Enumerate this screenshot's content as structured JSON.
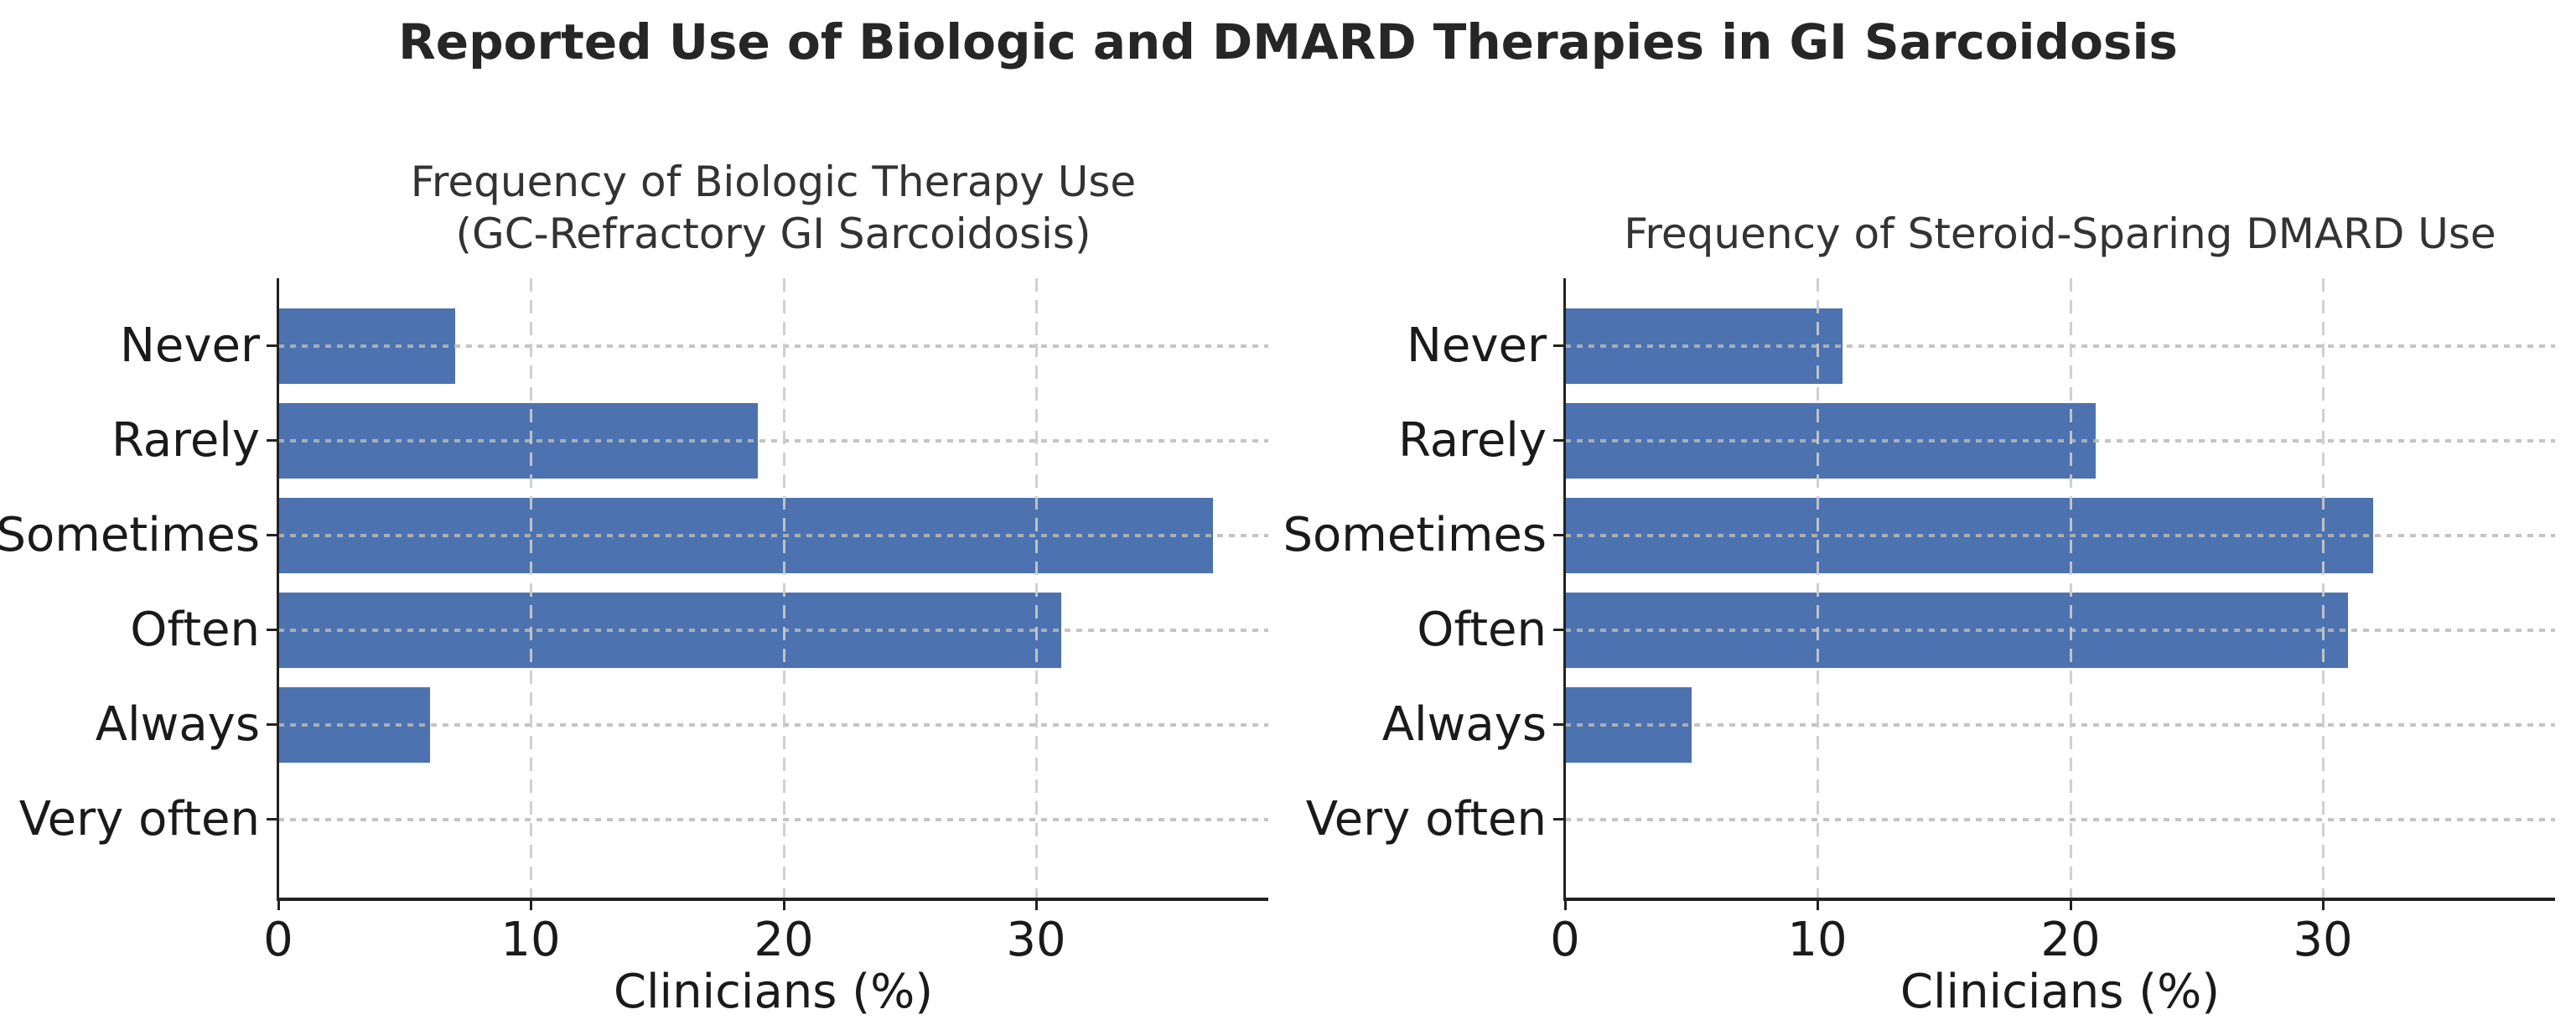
{
  "title": "Reported Use of Biologic and DMARD Therapies in GI Sarcoidosis",
  "colors": {
    "bar": "#4C72B0",
    "spine": "#222222",
    "grid_vertical": "rgba(203,203,203,0.9)",
    "grid_horizontal": "rgba(185,185,185,0.85)",
    "title_text": "#262626",
    "subtitle_text": "#333333",
    "label_text": "#1a1a1a"
  },
  "chart_data": [
    {
      "type": "bar",
      "orientation": "horizontal",
      "title": "Frequency of Biologic Therapy Use\n(GC-Refractory GI Sarcoidosis)",
      "categories": [
        "Never",
        "Rarely",
        "Sometimes",
        "Often",
        "Always",
        "Very often"
      ],
      "values": [
        7,
        19,
        37,
        31,
        6,
        0
      ],
      "xlabel": "Clinicians (%)",
      "xticks": [
        0,
        10,
        20,
        30
      ],
      "xlim": [
        0,
        39.2
      ],
      "grid": true,
      "legend": "none"
    },
    {
      "type": "bar",
      "orientation": "horizontal",
      "title": "Frequency of Steroid-Sparing DMARD Use",
      "categories": [
        "Never",
        "Rarely",
        "Sometimes",
        "Often",
        "Always",
        "Very often"
      ],
      "values": [
        11,
        21,
        32,
        31,
        5,
        0
      ],
      "xlabel": "Clinicians (%)",
      "xticks": [
        0,
        10,
        20,
        30
      ],
      "xlim": [
        0,
        39.2
      ],
      "grid": true,
      "legend": "none"
    }
  ]
}
